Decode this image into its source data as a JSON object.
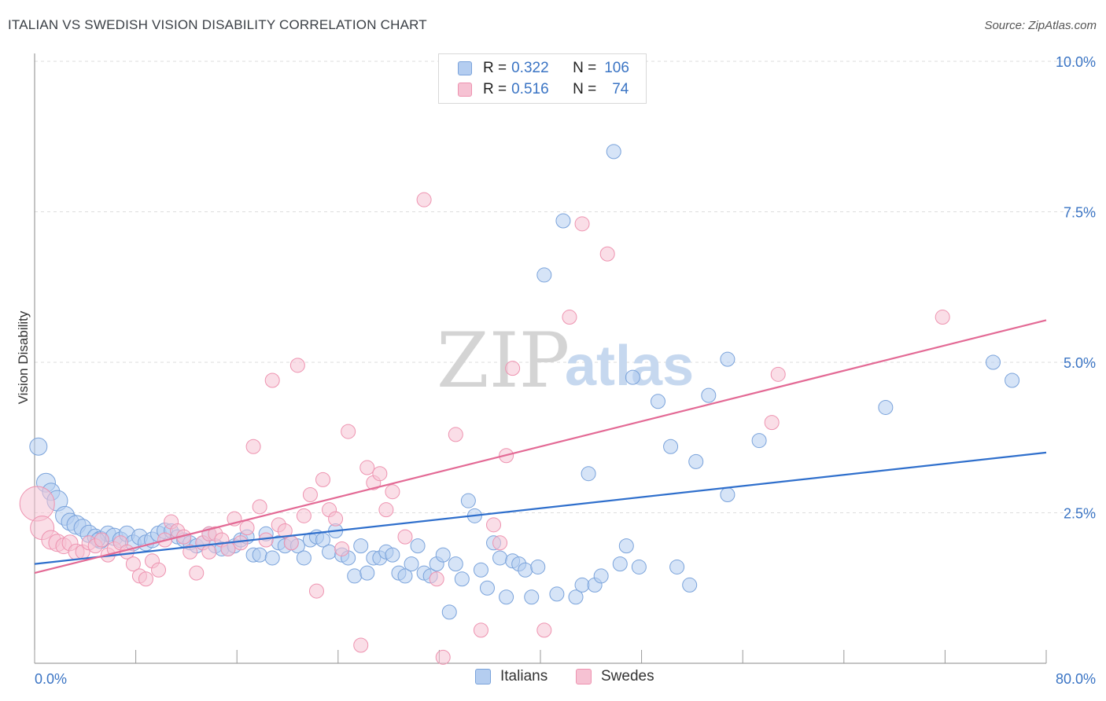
{
  "header": {
    "title": "ITALIAN VS SWEDISH VISION DISABILITY CORRELATION CHART",
    "source": "Source: ZipAtlas.com"
  },
  "watermark": {
    "part1": "ZIP",
    "part2": "atlas"
  },
  "legend_top": {
    "rows": [
      {
        "r_label": "R = ",
        "r_value": "0.322",
        "n_label": "N = ",
        "n_value": "106"
      },
      {
        "r_label": "R = ",
        "r_value": "0.516",
        "n_label": "N = ",
        "n_value": "74"
      }
    ]
  },
  "legend_bottom": {
    "items": [
      "Italians",
      "Swedes"
    ]
  },
  "colors": {
    "italians_fill": "#b4cdf0",
    "italians_stroke": "#7aa3db",
    "italians_line": "#2f6fcc",
    "swedes_fill": "#f6c2d3",
    "swedes_stroke": "#ee93b0",
    "swedes_line": "#e36a95",
    "axis_label": "#3a74c4",
    "grid": "#dddddd"
  },
  "chart_data": {
    "type": "scatter",
    "title": "ITALIAN VS SWEDISH VISION DISABILITY CORRELATION CHART",
    "xlabel": "",
    "ylabel": "Vision Disability",
    "xlim": [
      0,
      80
    ],
    "ylim": [
      0,
      10
    ],
    "x_tick_labels": [
      "0.0%",
      "80.0%"
    ],
    "y_tick_values": [
      2.5,
      5.0,
      7.5,
      10.0
    ],
    "y_tick_labels": [
      "2.5%",
      "5.0%",
      "7.5%",
      "10.0%"
    ],
    "grid": "horizontal dashed",
    "legend_position": "top-center",
    "series": [
      {
        "name": "Italians",
        "r": 0.322,
        "n": 106,
        "trend": {
          "x": [
            0,
            80
          ],
          "y": [
            1.65,
            3.5
          ]
        },
        "points": [
          [
            0.3,
            3.6,
            11
          ],
          [
            0.9,
            3.0,
            12
          ],
          [
            1.3,
            2.85,
            11
          ],
          [
            1.8,
            2.7,
            13
          ],
          [
            2.4,
            2.45,
            12
          ],
          [
            2.8,
            2.35,
            11
          ],
          [
            3.3,
            2.3,
            12
          ],
          [
            3.8,
            2.25,
            11
          ],
          [
            4.3,
            2.15,
            11
          ],
          [
            4.8,
            2.1,
            10
          ],
          [
            5.2,
            2.05,
            11
          ],
          [
            5.8,
            2.15,
            10
          ],
          [
            6.3,
            2.1,
            11
          ],
          [
            6.8,
            2.05,
            10
          ],
          [
            7.3,
            2.15,
            10
          ],
          [
            7.8,
            2.0,
            10
          ],
          [
            8.3,
            2.1,
            10
          ],
          [
            8.8,
            2.0,
            10
          ],
          [
            9.3,
            2.05,
            10
          ],
          [
            9.8,
            2.15,
            10
          ],
          [
            10.3,
            2.2,
            10
          ],
          [
            10.8,
            2.2,
            9
          ],
          [
            11.3,
            2.1,
            9
          ],
          [
            11.8,
            2.05,
            9
          ],
          [
            12.3,
            2.0,
            9
          ],
          [
            12.8,
            1.95,
            9
          ],
          [
            13.3,
            2.0,
            9
          ],
          [
            13.8,
            2.15,
            9
          ],
          [
            14.3,
            1.95,
            9
          ],
          [
            14.8,
            1.9,
            9
          ],
          [
            15.3,
            1.9,
            9
          ],
          [
            15.8,
            1.95,
            9
          ],
          [
            16.3,
            2.05,
            9
          ],
          [
            16.8,
            2.1,
            9
          ],
          [
            17.3,
            1.8,
            9
          ],
          [
            17.8,
            1.8,
            9
          ],
          [
            18.3,
            2.15,
            9
          ],
          [
            18.8,
            1.75,
            9
          ],
          [
            19.3,
            2.0,
            9
          ],
          [
            19.8,
            1.95,
            9
          ],
          [
            20.3,
            2.0,
            9
          ],
          [
            20.8,
            1.95,
            9
          ],
          [
            21.3,
            1.75,
            9
          ],
          [
            21.8,
            2.05,
            9
          ],
          [
            22.3,
            2.1,
            9
          ],
          [
            22.8,
            2.05,
            9
          ],
          [
            23.3,
            1.85,
            9
          ],
          [
            23.8,
            2.2,
            9
          ],
          [
            24.3,
            1.8,
            9
          ],
          [
            24.8,
            1.75,
            9
          ],
          [
            25.3,
            1.45,
            9
          ],
          [
            25.8,
            1.95,
            9
          ],
          [
            26.3,
            1.5,
            9
          ],
          [
            26.8,
            1.75,
            9
          ],
          [
            27.3,
            1.75,
            9
          ],
          [
            27.8,
            1.85,
            9
          ],
          [
            28.3,
            1.8,
            9
          ],
          [
            28.8,
            1.5,
            9
          ],
          [
            29.3,
            1.45,
            9
          ],
          [
            29.8,
            1.65,
            9
          ],
          [
            30.3,
            1.95,
            9
          ],
          [
            30.8,
            1.5,
            9
          ],
          [
            31.3,
            1.45,
            9
          ],
          [
            31.8,
            1.65,
            9
          ],
          [
            32.3,
            1.8,
            9
          ],
          [
            32.8,
            0.85,
            9
          ],
          [
            33.3,
            1.65,
            9
          ],
          [
            33.8,
            1.4,
            9
          ],
          [
            34.3,
            2.7,
            9
          ],
          [
            34.8,
            2.45,
            9
          ],
          [
            35.3,
            1.55,
            9
          ],
          [
            35.8,
            1.25,
            9
          ],
          [
            36.3,
            2.0,
            9
          ],
          [
            36.8,
            1.75,
            9
          ],
          [
            37.3,
            1.1,
            9
          ],
          [
            37.8,
            1.7,
            9
          ],
          [
            38.3,
            1.65,
            9
          ],
          [
            38.8,
            1.55,
            9
          ],
          [
            39.3,
            1.1,
            9
          ],
          [
            39.8,
            1.6,
            9
          ],
          [
            40.3,
            6.45,
            9
          ],
          [
            41.3,
            1.15,
            9
          ],
          [
            41.8,
            7.35,
            9
          ],
          [
            42.8,
            1.1,
            9
          ],
          [
            43.3,
            1.3,
            9
          ],
          [
            43.8,
            3.15,
            9
          ],
          [
            44.3,
            1.3,
            9
          ],
          [
            44.8,
            1.45,
            9
          ],
          [
            45.8,
            8.5,
            9
          ],
          [
            46.3,
            1.65,
            9
          ],
          [
            46.8,
            1.95,
            9
          ],
          [
            47.3,
            4.75,
            9
          ],
          [
            47.8,
            1.6,
            9
          ],
          [
            49.3,
            4.35,
            9
          ],
          [
            50.3,
            3.6,
            9
          ],
          [
            50.8,
            1.6,
            9
          ],
          [
            51.8,
            1.3,
            9
          ],
          [
            52.3,
            3.35,
            9
          ],
          [
            53.3,
            4.45,
            9
          ],
          [
            54.8,
            2.8,
            9
          ],
          [
            54.8,
            5.05,
            9
          ],
          [
            57.3,
            3.7,
            9
          ],
          [
            67.3,
            4.25,
            9
          ],
          [
            75.8,
            5.0,
            9
          ],
          [
            77.3,
            4.7,
            9
          ],
          [
            5.0,
            2.05,
            9
          ]
        ]
      },
      {
        "name": "Swedes",
        "r": 0.516,
        "n": 74,
        "trend": {
          "x": [
            0,
            80
          ],
          "y": [
            1.5,
            5.7
          ]
        },
        "points": [
          [
            0.2,
            2.65,
            22
          ],
          [
            0.6,
            2.25,
            15
          ],
          [
            1.3,
            2.05,
            12
          ],
          [
            1.8,
            2.0,
            11
          ],
          [
            2.3,
            1.95,
            10
          ],
          [
            2.8,
            2.0,
            10
          ],
          [
            3.3,
            1.85,
            10
          ],
          [
            3.8,
            1.85,
            9
          ],
          [
            4.3,
            2.0,
            9
          ],
          [
            4.8,
            1.95,
            9
          ],
          [
            5.3,
            2.05,
            9
          ],
          [
            5.8,
            1.8,
            9
          ],
          [
            6.3,
            1.9,
            9
          ],
          [
            6.8,
            2.0,
            9
          ],
          [
            7.3,
            1.85,
            9
          ],
          [
            7.8,
            1.65,
            9
          ],
          [
            8.3,
            1.45,
            9
          ],
          [
            8.8,
            1.4,
            9
          ],
          [
            9.3,
            1.7,
            9
          ],
          [
            9.8,
            1.55,
            9
          ],
          [
            10.3,
            2.05,
            9
          ],
          [
            10.8,
            2.35,
            9
          ],
          [
            11.3,
            2.2,
            9
          ],
          [
            11.8,
            2.1,
            9
          ],
          [
            12.3,
            1.85,
            9
          ],
          [
            12.8,
            1.5,
            9
          ],
          [
            13.3,
            2.0,
            9
          ],
          [
            13.8,
            2.15,
            9
          ],
          [
            14.3,
            2.15,
            9
          ],
          [
            14.8,
            2.05,
            9
          ],
          [
            15.3,
            1.9,
            9
          ],
          [
            15.8,
            2.4,
            9
          ],
          [
            16.3,
            2.0,
            9
          ],
          [
            16.8,
            2.25,
            9
          ],
          [
            17.3,
            3.6,
            9
          ],
          [
            17.8,
            2.6,
            9
          ],
          [
            18.3,
            2.05,
            9
          ],
          [
            18.8,
            4.7,
            9
          ],
          [
            19.3,
            2.3,
            9
          ],
          [
            19.8,
            2.2,
            9
          ],
          [
            20.3,
            2.0,
            9
          ],
          [
            20.8,
            4.95,
            9
          ],
          [
            21.3,
            2.45,
            9
          ],
          [
            21.8,
            2.8,
            9
          ],
          [
            22.3,
            1.2,
            9
          ],
          [
            22.8,
            3.05,
            9
          ],
          [
            23.3,
            2.55,
            9
          ],
          [
            23.8,
            2.4,
            9
          ],
          [
            24.3,
            1.9,
            9
          ],
          [
            24.8,
            3.85,
            9
          ],
          [
            25.8,
            0.3,
            9
          ],
          [
            26.3,
            3.25,
            9
          ],
          [
            26.8,
            3.0,
            9
          ],
          [
            27.3,
            3.15,
            9
          ],
          [
            27.8,
            2.55,
            9
          ],
          [
            28.3,
            2.85,
            9
          ],
          [
            29.3,
            2.1,
            9
          ],
          [
            30.8,
            7.7,
            9
          ],
          [
            31.8,
            1.4,
            9
          ],
          [
            32.3,
            0.1,
            9
          ],
          [
            33.3,
            3.8,
            9
          ],
          [
            35.3,
            0.55,
            9
          ],
          [
            36.3,
            2.3,
            9
          ],
          [
            36.8,
            2.0,
            9
          ],
          [
            37.3,
            3.45,
            9
          ],
          [
            37.8,
            4.9,
            9
          ],
          [
            40.3,
            0.55,
            9
          ],
          [
            42.3,
            5.75,
            9
          ],
          [
            43.3,
            7.3,
            9
          ],
          [
            45.3,
            6.8,
            9
          ],
          [
            58.3,
            4.0,
            9
          ],
          [
            58.8,
            4.8,
            9
          ],
          [
            71.8,
            5.75,
            9
          ],
          [
            13.8,
            1.85,
            9
          ]
        ]
      }
    ]
  }
}
